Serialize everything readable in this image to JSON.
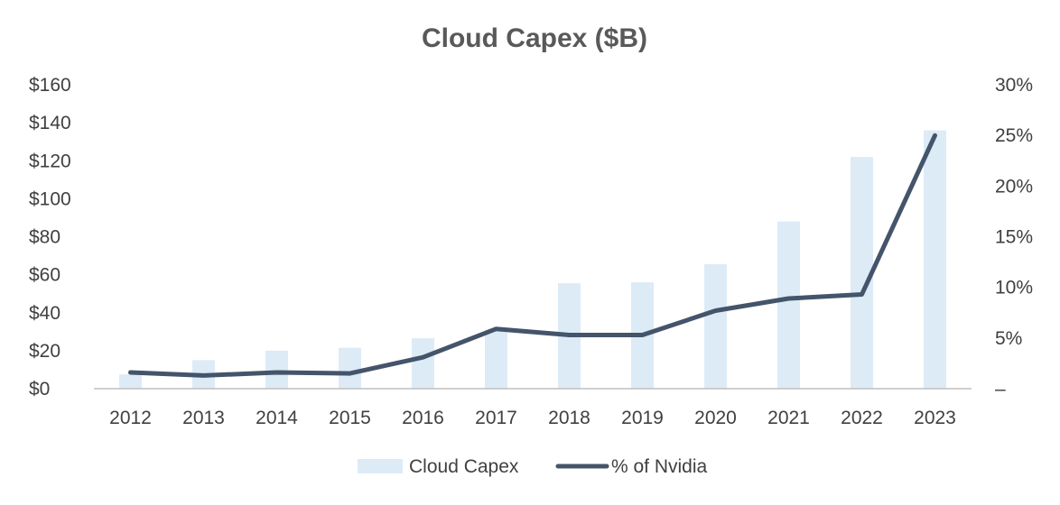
{
  "chart_data": {
    "type": "bar",
    "title": "Cloud Capex ($B)",
    "categories": [
      "2012",
      "2013",
      "2014",
      "2015",
      "2016",
      "2017",
      "2018",
      "2019",
      "2020",
      "2021",
      "2022",
      "2023"
    ],
    "series": [
      {
        "name": "Cloud Capex",
        "type": "bar",
        "axis": "left",
        "color": "#DDEBF7",
        "values": [
          7.5,
          15,
          20,
          21.5,
          26.5,
          31,
          55.5,
          56,
          65.5,
          88,
          122,
          136
        ]
      },
      {
        "name": "% of Nvidia",
        "type": "line",
        "axis": "right",
        "color": "#44546A",
        "values": [
          1.6,
          1.3,
          1.6,
          1.5,
          3.1,
          5.9,
          5.3,
          5.3,
          7.7,
          8.9,
          9.3,
          25.0
        ]
      }
    ],
    "y_left": {
      "min": 0,
      "max": 160,
      "step": 20,
      "tick_labels": [
        "$0",
        "$20",
        "$40",
        "$60",
        "$80",
        "$100",
        "$120",
        "$140",
        "$160"
      ]
    },
    "y_right": {
      "min": 0,
      "max": 30,
      "step": 5,
      "tick_labels": [
        "–",
        "5%",
        "10%",
        "15%",
        "20%",
        "25%",
        "30%"
      ]
    },
    "grid": false,
    "legend_position": "bottom"
  }
}
